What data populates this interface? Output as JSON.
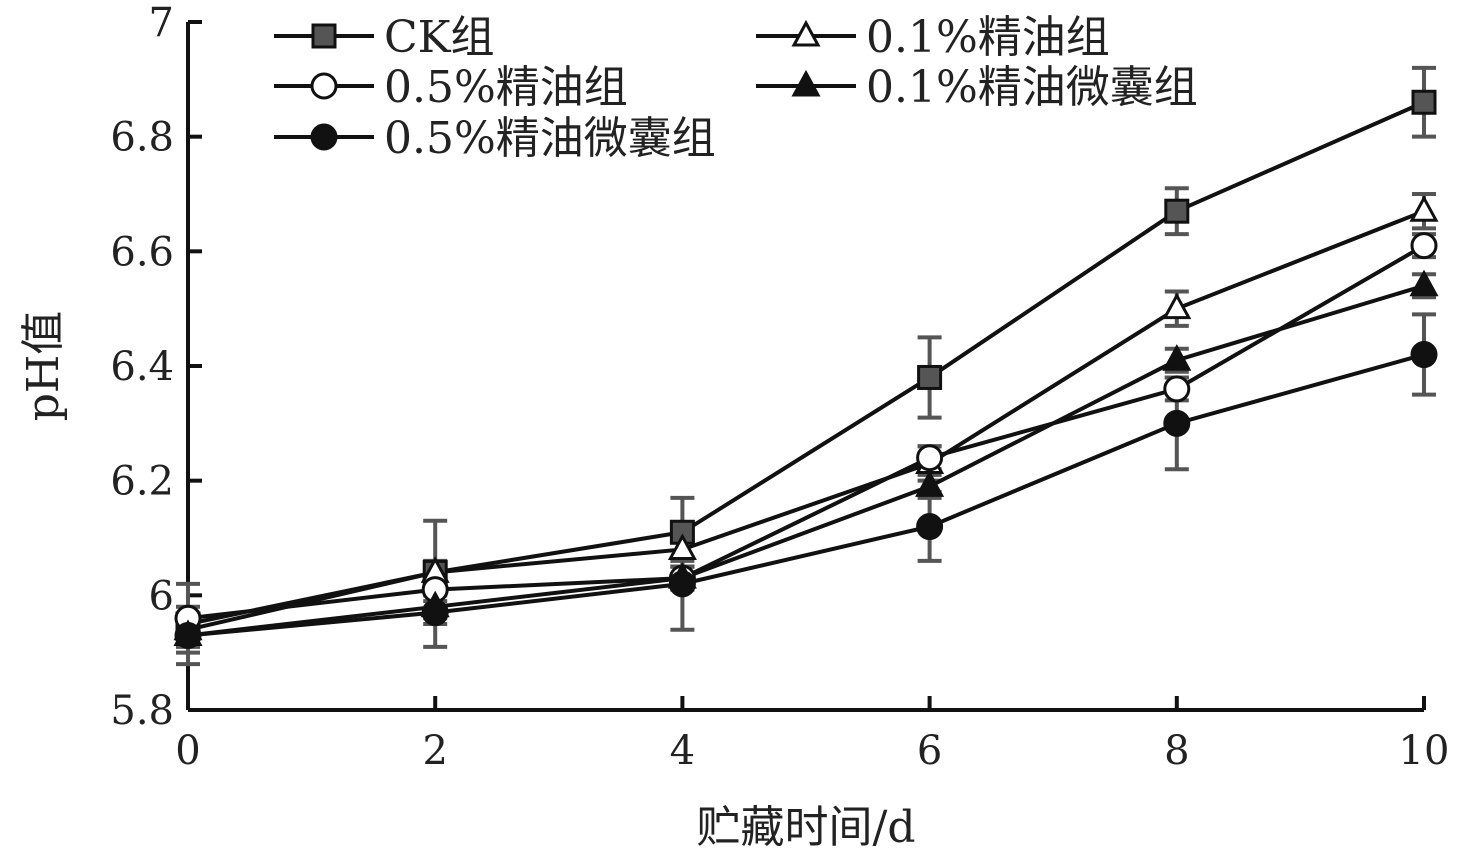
{
  "chart_data": {
    "type": "line",
    "xlabel": "贮藏时间/d",
    "ylabel": "pH值",
    "xlim": [
      0,
      10
    ],
    "ylim": [
      5.8,
      7
    ],
    "x_ticks": [
      0,
      2,
      4,
      6,
      8,
      10
    ],
    "y_ticks": [
      5.8,
      6,
      6.2,
      6.4,
      6.6,
      6.8,
      7
    ],
    "y_tick_labels": [
      "5.8",
      "6",
      "6.2",
      "6.4",
      "6.6",
      "6.8",
      "7"
    ],
    "legend_position": "top",
    "grid": false,
    "x": [
      0,
      2,
      4,
      6,
      8,
      10
    ],
    "series": [
      {
        "name": "CK组",
        "marker": "square",
        "fill": "#555555",
        "values": [
          5.95,
          6.04,
          6.11,
          6.38,
          6.67,
          6.86
        ],
        "errors": [
          0.07,
          0.09,
          0.06,
          0.07,
          0.04,
          0.06
        ]
      },
      {
        "name": "0.1%精油组",
        "marker": "triangle",
        "fill": "#ffffff",
        "values": [
          5.94,
          6.04,
          6.08,
          6.23,
          6.5,
          6.67
        ],
        "errors": [
          0.02,
          0.02,
          0.02,
          0.03,
          0.03,
          0.03
        ]
      },
      {
        "name": "0.5%精油组",
        "marker": "circle",
        "fill": "#ffffff",
        "values": [
          5.96,
          6.01,
          6.03,
          6.24,
          6.36,
          6.61
        ],
        "errors": [
          0.02,
          0.02,
          0.02,
          0.02,
          0.02,
          0.02
        ]
      },
      {
        "name": "0.1%精油微囊组",
        "marker": "triangle",
        "fill": "#111111",
        "values": [
          5.93,
          5.98,
          6.03,
          6.19,
          6.41,
          6.54
        ],
        "errors": [
          0.02,
          0.02,
          0.02,
          0.02,
          0.02,
          0.02
        ]
      },
      {
        "name": "0.5%精油微囊组",
        "marker": "circle",
        "fill": "#111111",
        "values": [
          5.93,
          5.97,
          6.02,
          6.12,
          6.3,
          6.42
        ],
        "errors": [
          0.03,
          0.06,
          0.08,
          0.06,
          0.08,
          0.07
        ]
      }
    ]
  }
}
